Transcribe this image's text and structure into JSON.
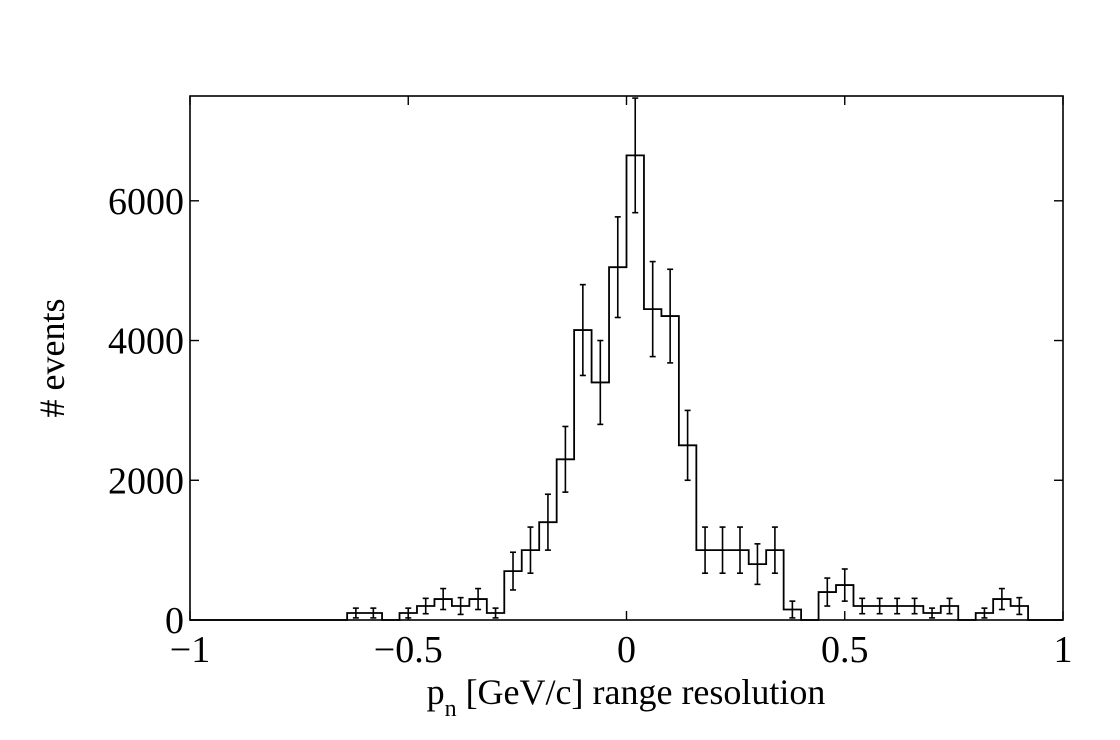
{
  "chart_data": {
    "type": "bar",
    "style": "step-histogram-with-error-bars",
    "title": "",
    "xlabel_main": "p",
    "xlabel_sub": "n",
    "xlabel_rest": " [GeV/c] range resolution",
    "ylabel": "# events",
    "xlim": [
      -1,
      1
    ],
    "ylim": [
      0,
      7500
    ],
    "xticks": [
      -1,
      -0.5,
      0,
      0.5,
      1
    ],
    "xtick_labels": [
      "−1",
      "−0.5",
      "0",
      "0.5",
      "1"
    ],
    "yticks": [
      0,
      2000,
      4000,
      6000
    ],
    "ytick_labels": [
      "0",
      "2000",
      "4000",
      "6000"
    ],
    "bin_width": 0.04,
    "bin_edges_start": -1.0,
    "values": [
      0,
      0,
      0,
      0,
      0,
      0,
      0,
      0,
      0,
      100,
      100,
      0,
      100,
      200,
      300,
      200,
      300,
      100,
      700,
      1000,
      1400,
      2300,
      4150,
      3400,
      5050,
      6650,
      4450,
      4350,
      2500,
      1000,
      1000,
      1000,
      800,
      1000,
      150,
      0,
      400,
      500,
      200,
      200,
      200,
      200,
      100,
      200,
      0,
      100,
      300,
      200,
      0,
      0
    ],
    "errors": [
      0,
      0,
      0,
      0,
      0,
      0,
      0,
      0,
      0,
      70,
      70,
      0,
      70,
      110,
      150,
      120,
      150,
      70,
      270,
      330,
      400,
      470,
      650,
      600,
      720,
      820,
      680,
      670,
      500,
      330,
      330,
      330,
      290,
      330,
      120,
      0,
      200,
      230,
      110,
      110,
      110,
      110,
      70,
      110,
      0,
      70,
      150,
      120,
      0,
      0
    ],
    "grid": false
  }
}
